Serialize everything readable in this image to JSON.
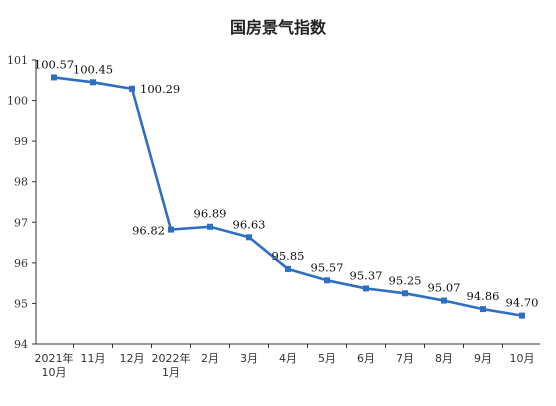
{
  "chart_data": {
    "type": "line",
    "title": "国房景气指数",
    "categories": [
      [
        "2021年",
        "10月"
      ],
      [
        "11月"
      ],
      [
        "12月"
      ],
      [
        "2022年",
        "1月"
      ],
      [
        "2月"
      ],
      [
        "3月"
      ],
      [
        "4月"
      ],
      [
        "5月"
      ],
      [
        "6月"
      ],
      [
        "7月"
      ],
      [
        "8月"
      ],
      [
        "9月"
      ],
      [
        "10月"
      ]
    ],
    "series": [
      {
        "values": [
          100.57,
          100.45,
          100.29,
          96.82,
          96.89,
          96.63,
          95.85,
          95.57,
          95.37,
          95.25,
          95.07,
          94.86,
          94.7
        ],
        "labels": [
          "100.57",
          "100.45",
          "100.29",
          "96.82",
          "96.89",
          "96.63",
          "95.85",
          "95.57",
          "95.37",
          "95.25",
          "95.07",
          "94.86",
          "94.70"
        ],
        "color": "#2e6fc4"
      }
    ],
    "ylim": [
      94,
      101
    ],
    "yticks": [
      94,
      95,
      96,
      97,
      98,
      99,
      100,
      101
    ],
    "grid": false,
    "legend": "none"
  }
}
